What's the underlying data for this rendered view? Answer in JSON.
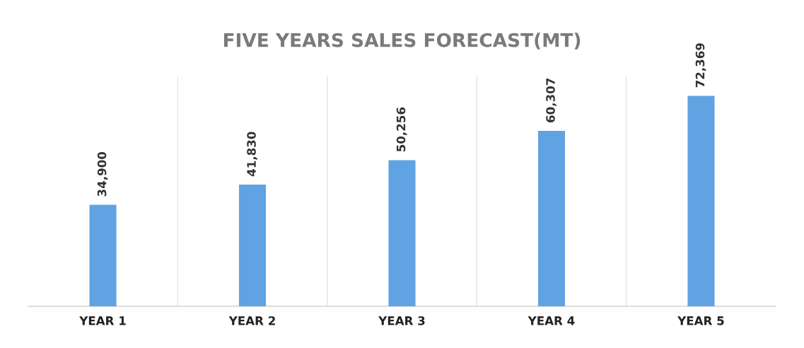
{
  "chart_data": {
    "type": "bar",
    "title": "FIVE YEARS SALES FORECAST(MT)",
    "categories": [
      "YEAR 1",
      "YEAR 2",
      "YEAR 3",
      "YEAR 4",
      "YEAR 5"
    ],
    "values": [
      34900,
      41830,
      50256,
      60307,
      72369
    ],
    "value_labels": [
      "34,900",
      "41,830",
      "50,256",
      "60,307",
      "72,369"
    ],
    "color": "#5fa3e3",
    "ylim": [
      0,
      79000
    ],
    "tick_labels": "x",
    "grid": "x"
  }
}
